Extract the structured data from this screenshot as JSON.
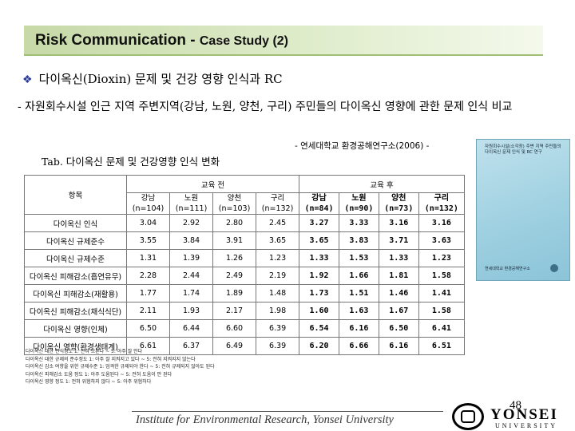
{
  "header": {
    "title_main": "Risk Communication - ",
    "title_sub": "Case Study (2)"
  },
  "bullet": {
    "icon": "diamond-bullet-icon",
    "text": "다이옥신(Dioxin) 문제 및 건강 영향 인식과 RC"
  },
  "description": "- 자원회수시설 인근 지역 주변지역(강남, 노원, 양천, 구리) 주민들의 다이옥신 영향에 관한 문제 인식 비교",
  "source": "- 연세대학교 환경공해연구소(2006) -",
  "table_caption": "Tab. 다이옥신 문제 및 건강영향 인식 변화",
  "report_cover": {
    "title": "자원회수시설(소각장) 주변 지역 주민들의 다이옥신 문제 인식 및 RC 연구",
    "org": "연세대학교 환경공해연구소"
  },
  "table": {
    "item_header": "항목",
    "before_header": "교육 전",
    "after_header": "교육 후",
    "columns_before": [
      {
        "name": "강남",
        "n": "(n=104)"
      },
      {
        "name": "노원",
        "n": "(n=111)"
      },
      {
        "name": "양천",
        "n": "(n=103)"
      },
      {
        "name": "구리",
        "n": "(n=132)"
      }
    ],
    "columns_after": [
      {
        "name": "강남",
        "n": "(n=84)"
      },
      {
        "name": "노원",
        "n": "(n=90)"
      },
      {
        "name": "양천",
        "n": "(n=73)"
      },
      {
        "name": "구리",
        "n": "(n=132)"
      }
    ],
    "rows": [
      {
        "label": "다이옥신 인식",
        "before": [
          "3.04",
          "2.92",
          "2.80",
          "2.45"
        ],
        "after": [
          "3.27",
          "3.33",
          "3.16",
          "3.16"
        ]
      },
      {
        "label": "다이옥신 규제준수",
        "before": [
          "3.55",
          "3.84",
          "3.91",
          "3.65"
        ],
        "after": [
          "3.65",
          "3.83",
          "3.71",
          "3.63"
        ]
      },
      {
        "label": "다이옥신 규제수준",
        "before": [
          "1.31",
          "1.39",
          "1.26",
          "1.23"
        ],
        "after": [
          "1.33",
          "1.53",
          "1.33",
          "1.23"
        ]
      },
      {
        "label": "다이옥신 피해감소(흡연유무)",
        "before": [
          "2.28",
          "2.44",
          "2.49",
          "2.19"
        ],
        "after": [
          "1.92",
          "1.66",
          "1.81",
          "1.58"
        ]
      },
      {
        "label": "다이옥신 피해감소(재활용)",
        "before": [
          "1.77",
          "1.74",
          "1.89",
          "1.48"
        ],
        "after": [
          "1.73",
          "1.51",
          "1.46",
          "1.41"
        ]
      },
      {
        "label": "다이옥신 피해감소(채식식단)",
        "before": [
          "2.11",
          "1.93",
          "2.17",
          "1.98"
        ],
        "after": [
          "1.60",
          "1.63",
          "1.67",
          "1.58"
        ]
      },
      {
        "label": "다이옥신 영향(인체)",
        "before": [
          "6.50",
          "6.44",
          "6.60",
          "6.39"
        ],
        "after": [
          "6.54",
          "6.16",
          "6.50",
          "6.41"
        ]
      },
      {
        "label": "다이옥신 영향(환경생태계)",
        "before": [
          "6.61",
          "6.37",
          "6.49",
          "6.39"
        ],
        "after": [
          "6.20",
          "6.66",
          "6.16",
          "6.51"
        ]
      }
    ]
  },
  "notes": [
    "다이옥신 대한 인식정도 1: 전혀 모른다 ~ 5: 아주 잘 안다",
    "다이옥신 대한 규제의 준수정도 1: 아주 잘 지켜지고 있다 ~ 5: 전혀 지켜지지 않는다",
    "다이옥신 감소 여향을 위한 규제수준 1: 엄격한 규제되야 한다 ~ 5: 전혀 규제되지 않아도 된다",
    "다이옥신 피해감소 도움 정도 1: 아주 도움된다 ~ 5: 전혀 도움이 안 된다",
    "다이옥신 영향 정도 1: 전혀 위험하지 않다 ~ 5: 아주 위험하다"
  ],
  "footer": {
    "page_number": "48",
    "institute": "Institute for Environmental Research, Yonsei University",
    "brand": "YONSEI",
    "brand_sub": "UNIVERSITY"
  }
}
